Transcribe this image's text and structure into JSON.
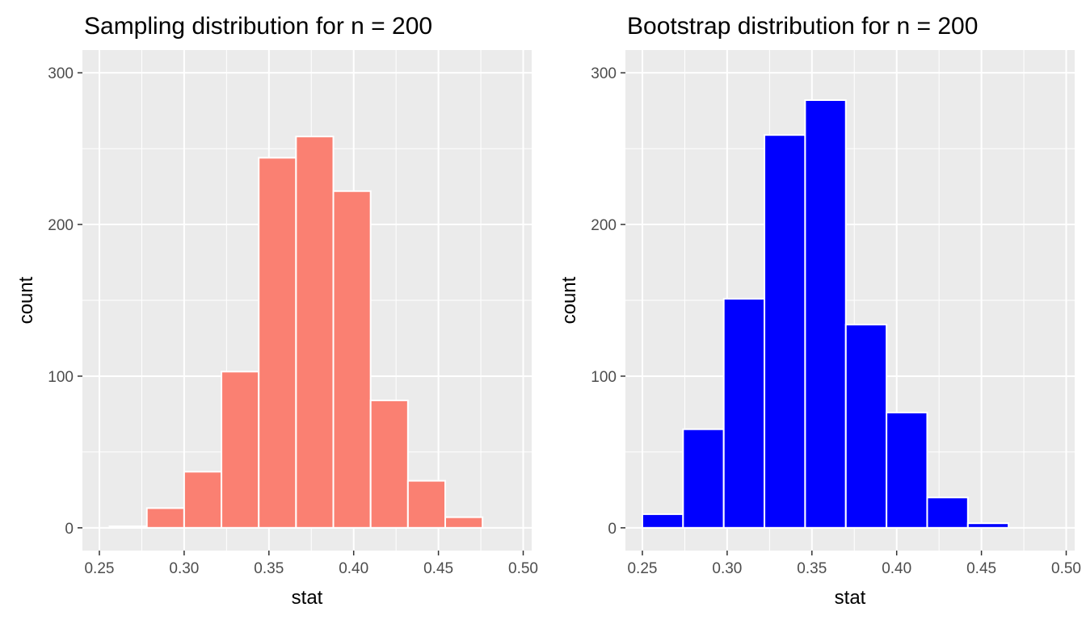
{
  "chart_data": [
    {
      "type": "bar",
      "title": "Sampling distribution for n = 200",
      "xlabel": "stat",
      "ylabel": "count",
      "xlim": [
        0.24,
        0.505
      ],
      "ylim": [
        -15,
        315
      ],
      "x_ticks": [
        0.25,
        0.3,
        0.35,
        0.4,
        0.45,
        0.5
      ],
      "x_tick_labels": [
        "0.25",
        "0.30",
        "0.35",
        "0.40",
        "0.45",
        "0.50"
      ],
      "y_ticks": [
        0,
        100,
        200,
        300
      ],
      "y_tick_labels": [
        "0",
        "100",
        "200",
        "300"
      ],
      "grid": true,
      "fill_color": "#fa8072",
      "bins": [
        {
          "x0": 0.256,
          "x1": 0.278,
          "count": 1
        },
        {
          "x0": 0.278,
          "x1": 0.3,
          "count": 13
        },
        {
          "x0": 0.3,
          "x1": 0.322,
          "count": 37
        },
        {
          "x0": 0.322,
          "x1": 0.344,
          "count": 103
        },
        {
          "x0": 0.344,
          "x1": 0.366,
          "count": 244
        },
        {
          "x0": 0.366,
          "x1": 0.388,
          "count": 258
        },
        {
          "x0": 0.388,
          "x1": 0.41,
          "count": 222
        },
        {
          "x0": 0.41,
          "x1": 0.432,
          "count": 84
        },
        {
          "x0": 0.432,
          "x1": 0.454,
          "count": 31
        },
        {
          "x0": 0.454,
          "x1": 0.476,
          "count": 7
        }
      ]
    },
    {
      "type": "bar",
      "title": "Bootstrap distribution for n = 200",
      "xlabel": "stat",
      "ylabel": "count",
      "xlim": [
        0.24,
        0.505
      ],
      "ylim": [
        -15,
        315
      ],
      "x_ticks": [
        0.25,
        0.3,
        0.35,
        0.4,
        0.45,
        0.5
      ],
      "x_tick_labels": [
        "0.25",
        "0.30",
        "0.35",
        "0.40",
        "0.45",
        "0.50"
      ],
      "y_ticks": [
        0,
        100,
        200,
        300
      ],
      "y_tick_labels": [
        "0",
        "100",
        "200",
        "300"
      ],
      "grid": true,
      "fill_color": "#0000ff",
      "bins": [
        {
          "x0": 0.25,
          "x1": 0.274,
          "count": 9
        },
        {
          "x0": 0.274,
          "x1": 0.298,
          "count": 65
        },
        {
          "x0": 0.298,
          "x1": 0.322,
          "count": 151
        },
        {
          "x0": 0.322,
          "x1": 0.346,
          "count": 259
        },
        {
          "x0": 0.346,
          "x1": 0.37,
          "count": 282
        },
        {
          "x0": 0.37,
          "x1": 0.394,
          "count": 134
        },
        {
          "x0": 0.394,
          "x1": 0.418,
          "count": 76
        },
        {
          "x0": 0.418,
          "x1": 0.442,
          "count": 20
        },
        {
          "x0": 0.442,
          "x1": 0.466,
          "count": 3
        }
      ]
    }
  ]
}
